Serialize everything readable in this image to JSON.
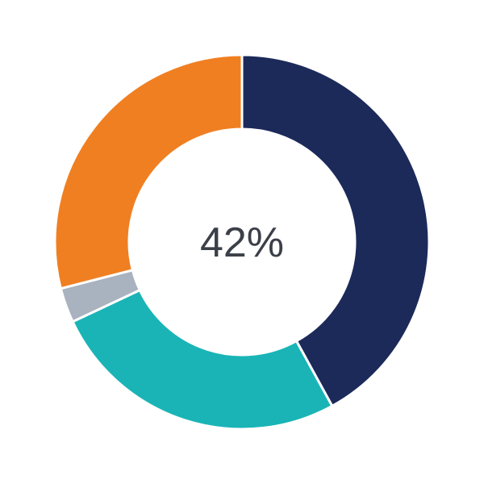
{
  "chart_data": {
    "type": "pie",
    "donut": true,
    "center_label": "42%",
    "slices": [
      {
        "value": 42,
        "color": "#1c2a5a"
      },
      {
        "value": 26,
        "color": "#1ab4b6"
      },
      {
        "value": 3,
        "color": "#a9b2bf"
      },
      {
        "value": 29,
        "color": "#f07f22"
      }
    ],
    "start": "top",
    "direction": "clockwise",
    "legend": "none"
  }
}
